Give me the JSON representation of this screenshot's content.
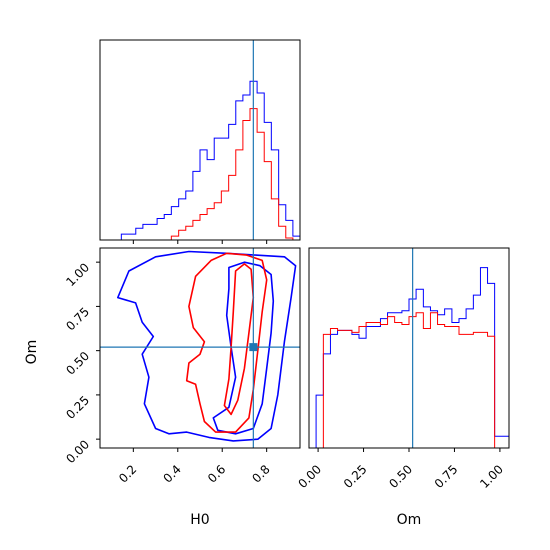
{
  "figure": {
    "type": "corner_plot",
    "parameters": [
      "H0",
      "Om"
    ],
    "colors": {
      "series_a": "#0000ff",
      "series_b": "#ff0000",
      "truth": "#1f77b4"
    }
  },
  "chart_data": [
    {
      "type": "histogram",
      "panel": "H0 marginal",
      "xlim": [
        0.05,
        0.95
      ],
      "xticks": [
        0.2,
        0.4,
        0.6,
        0.8
      ],
      "yticks_shown": false,
      "bin_edges": [
        0.05,
        0.082,
        0.114,
        0.146,
        0.179,
        0.211,
        0.243,
        0.275,
        0.307,
        0.339,
        0.371,
        0.404,
        0.436,
        0.468,
        0.5,
        0.532,
        0.564,
        0.596,
        0.629,
        0.661,
        0.693,
        0.725,
        0.757,
        0.789,
        0.821,
        0.854,
        0.886,
        0.918,
        0.95
      ],
      "series": [
        {
          "name": "",
          "color": "#0000ff",
          "values": [
            0,
            0,
            0,
            0.03,
            0.03,
            0.06,
            0.08,
            0.08,
            0.11,
            0.13,
            0.17,
            0.21,
            0.25,
            0.35,
            0.46,
            0.41,
            0.52,
            0.52,
            0.59,
            0.71,
            0.74,
            0.81,
            0.75,
            0.6,
            0.46,
            0.18,
            0.1,
            0.02
          ]
        },
        {
          "name": "",
          "color": "#ff0000",
          "values": [
            0,
            0,
            0,
            0,
            0,
            0,
            0,
            0,
            0,
            0,
            0.02,
            0.05,
            0.07,
            0.1,
            0.13,
            0.16,
            0.19,
            0.25,
            0.33,
            0.46,
            0.61,
            0.67,
            0.55,
            0.4,
            0.21,
            0.07,
            0.01,
            0
          ]
        }
      ],
      "truth": {
        "x": 0.74
      }
    },
    {
      "type": "contour",
      "panel": "H0 vs Om",
      "xlabel": "H0",
      "ylabel": "Om",
      "xlim": [
        0.05,
        0.95
      ],
      "ylim": [
        -0.05,
        1.08
      ],
      "xticks": [
        0.2,
        0.4,
        0.6,
        0.8
      ],
      "yticks": [
        0.0,
        0.25,
        0.5,
        0.75,
        1.0
      ],
      "truth": {
        "x": 0.74,
        "y": 0.52
      },
      "series": [
        {
          "name": "",
          "color": "#0000ff",
          "contours": [
            [
              [
                0.3,
                1.03
              ],
              [
                0.45,
                1.06
              ],
              [
                0.62,
                1.05
              ],
              [
                0.75,
                1.04
              ],
              [
                0.88,
                1.03
              ],
              [
                0.93,
                0.98
              ],
              [
                0.91,
                0.8
              ],
              [
                0.88,
                0.55
              ],
              [
                0.85,
                0.25
              ],
              [
                0.82,
                0.06
              ],
              [
                0.76,
                0.0
              ],
              [
                0.65,
                -0.01
              ],
              [
                0.54,
                0.01
              ],
              [
                0.44,
                0.04
              ],
              [
                0.36,
                0.03
              ],
              [
                0.3,
                0.06
              ],
              [
                0.25,
                0.2
              ],
              [
                0.27,
                0.35
              ],
              [
                0.24,
                0.48
              ],
              [
                0.29,
                0.58
              ],
              [
                0.24,
                0.66
              ],
              [
                0.21,
                0.77
              ],
              [
                0.13,
                0.8
              ],
              [
                0.18,
                0.95
              ],
              [
                0.3,
                1.03
              ]
            ],
            [
              [
                0.63,
                0.97
              ],
              [
                0.7,
                1.0
              ],
              [
                0.77,
                0.98
              ],
              [
                0.82,
                0.93
              ],
              [
                0.83,
                0.78
              ],
              [
                0.82,
                0.6
              ],
              [
                0.8,
                0.4
              ],
              [
                0.78,
                0.2
              ],
              [
                0.74,
                0.06
              ],
              [
                0.66,
                0.03
              ],
              [
                0.58,
                0.05
              ],
              [
                0.56,
                0.12
              ],
              [
                0.63,
                0.18
              ],
              [
                0.66,
                0.35
              ],
              [
                0.64,
                0.52
              ],
              [
                0.62,
                0.7
              ],
              [
                0.63,
                0.85
              ],
              [
                0.63,
                0.97
              ]
            ]
          ]
        },
        {
          "name": "",
          "color": "#ff0000",
          "contours": [
            [
              [
                0.48,
                0.92
              ],
              [
                0.55,
                1.01
              ],
              [
                0.62,
                1.05
              ],
              [
                0.71,
                1.04
              ],
              [
                0.78,
                1.01
              ],
              [
                0.8,
                0.9
              ],
              [
                0.78,
                0.72
              ],
              [
                0.76,
                0.5
              ],
              [
                0.74,
                0.28
              ],
              [
                0.72,
                0.12
              ],
              [
                0.66,
                0.04
              ],
              [
                0.57,
                0.04
              ],
              [
                0.52,
                0.1
              ],
              [
                0.5,
                0.2
              ],
              [
                0.48,
                0.31
              ],
              [
                0.44,
                0.33
              ],
              [
                0.45,
                0.43
              ],
              [
                0.5,
                0.48
              ],
              [
                0.52,
                0.55
              ],
              [
                0.47,
                0.63
              ],
              [
                0.45,
                0.75
              ],
              [
                0.48,
                0.92
              ]
            ],
            [
              [
                0.66,
                0.95
              ],
              [
                0.7,
                0.99
              ],
              [
                0.73,
                0.96
              ],
              [
                0.74,
                0.8
              ],
              [
                0.72,
                0.6
              ],
              [
                0.7,
                0.4
              ],
              [
                0.67,
                0.22
              ],
              [
                0.64,
                0.14
              ],
              [
                0.61,
                0.19
              ],
              [
                0.63,
                0.34
              ],
              [
                0.64,
                0.52
              ],
              [
                0.65,
                0.72
              ],
              [
                0.66,
                0.95
              ]
            ]
          ]
        }
      ]
    },
    {
      "type": "histogram",
      "panel": "Om marginal",
      "xlabel": "Om",
      "xlim": [
        -0.05,
        1.05
      ],
      "xticks": [
        0.0,
        0.25,
        0.5,
        0.75,
        1.0
      ],
      "xtick_labels": [
        "0.00",
        "0.25",
        "0.50",
        "0.75",
        "1.00"
      ],
      "yticks_shown": false,
      "bin_edges": [
        -0.05,
        -0.011,
        0.029,
        0.068,
        0.107,
        0.146,
        0.186,
        0.225,
        0.264,
        0.304,
        0.343,
        0.382,
        0.421,
        0.461,
        0.5,
        0.539,
        0.579,
        0.618,
        0.657,
        0.696,
        0.736,
        0.775,
        0.814,
        0.854,
        0.893,
        0.932,
        0.971,
        1.011,
        1.05
      ],
      "series": [
        {
          "name": "",
          "color": "#0000ff",
          "values": [
            0,
            0.27,
            0.48,
            0.58,
            0.6,
            0.6,
            0.58,
            0.56,
            0.62,
            0.62,
            0.66,
            0.69,
            0.69,
            0.7,
            0.76,
            0.81,
            0.72,
            0.7,
            0.68,
            0.71,
            0.64,
            0.66,
            0.71,
            0.78,
            0.92,
            0.84,
            0.06,
            0.06
          ]
        },
        {
          "name": "",
          "color": "#ff0000",
          "values": [
            0,
            0,
            0.58,
            0.61,
            0.6,
            0.6,
            0.59,
            0.62,
            0.64,
            0.64,
            0.63,
            0.67,
            0.64,
            0.63,
            0.67,
            0.69,
            0.61,
            0.69,
            0.63,
            0.62,
            0.62,
            0.58,
            0.58,
            0.59,
            0.59,
            0.57,
            0,
            0
          ]
        }
      ],
      "truth": {
        "x": 0.52
      }
    }
  ]
}
